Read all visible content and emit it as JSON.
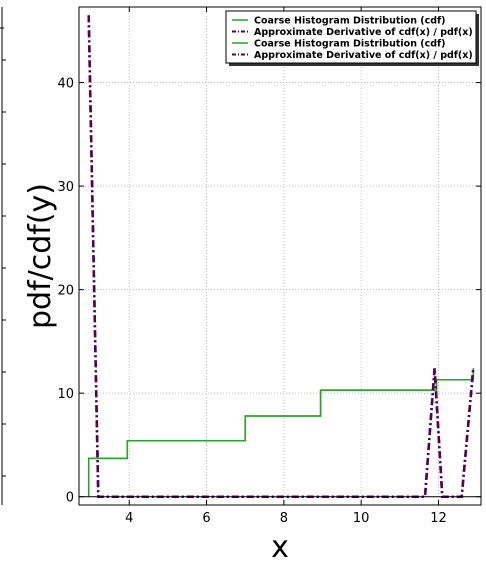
{
  "chart_data": {
    "type": "line",
    "xlabel": "x",
    "ylabel": "pdf/cdf(y)",
    "xlim": [
      2.7,
      13.1
    ],
    "ylim": [
      -0.8,
      47.3
    ],
    "xticks": [
      4,
      6,
      8,
      10,
      12
    ],
    "yticks": [
      0,
      10,
      20,
      30,
      40
    ],
    "grid": true,
    "legend_position": "top-right",
    "series": [
      {
        "name": "Coarse Histogram Distribution (cdf)",
        "style": "solid",
        "color": "#2ca02c",
        "x": [
          2.95,
          2.95,
          3.95,
          3.95,
          7.0,
          7.0,
          8.95,
          8.95,
          11.95,
          11.95,
          12.9,
          12.9
        ],
        "y": [
          0,
          3.7,
          3.7,
          5.4,
          5.4,
          7.8,
          7.8,
          10.3,
          10.3,
          11.3,
          11.3,
          12.4
        ]
      },
      {
        "name": "Approximate Derivative of cdf(x) / pdf(x)",
        "style": "dashdot",
        "color": "#550055",
        "x": [
          2.95,
          3.2,
          11.65,
          11.9,
          12.1,
          12.6,
          12.9
        ],
        "y": [
          46.5,
          0,
          0,
          12.4,
          0,
          0,
          12.4
        ]
      },
      {
        "name": "Coarse Histogram Distribution (cdf)",
        "style": "solid",
        "color": "#2ca02c",
        "x": [
          2.95,
          2.95,
          3.95,
          3.95,
          7.0,
          7.0,
          8.95,
          8.95,
          11.95,
          11.95,
          12.9,
          12.9
        ],
        "y": [
          0,
          3.7,
          3.7,
          5.4,
          5.4,
          7.8,
          7.8,
          10.3,
          10.3,
          11.3,
          11.3,
          12.4
        ]
      },
      {
        "name": "Approximate Derivative of cdf(x) / pdf(x)",
        "style": "dashdot",
        "color": "#550055",
        "x": [
          2.95,
          3.2,
          11.65,
          11.9,
          12.1,
          12.6,
          12.9
        ],
        "y": [
          46.5,
          0,
          0,
          12.4,
          0,
          0,
          12.4
        ]
      }
    ]
  }
}
